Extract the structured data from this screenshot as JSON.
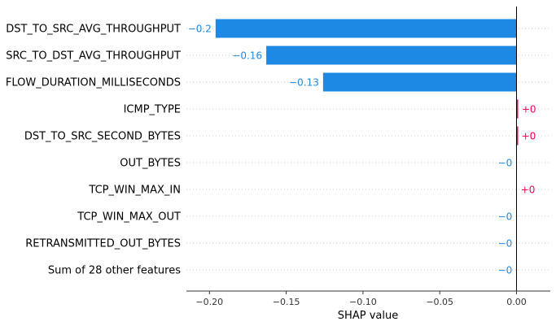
{
  "chart_data": {
    "type": "bar",
    "orientation": "horizontal",
    "title": "",
    "xlabel": "SHAP value",
    "ylabel": "",
    "xlim": [
      -0.215,
      0.022
    ],
    "grid": "horizontal dotted",
    "colors": {
      "negative": "#1e88e5",
      "positive": "#ff0051"
    },
    "categories": [
      "DST_TO_SRC_AVG_THROUGHPUT",
      "SRC_TO_DST_AVG_THROUGHPUT",
      "FLOW_DURATION_MILLISECONDS",
      "ICMP_TYPE",
      "DST_TO_SRC_SECOND_BYTES",
      "OUT_BYTES",
      "TCP_WIN_MAX_IN",
      "TCP_WIN_MAX_OUT",
      "RETRANSMITTED_OUT_BYTES",
      "Sum of 28 other features"
    ],
    "values": [
      -0.196,
      -0.163,
      -0.126,
      0.0007,
      0.0006,
      -0.0001,
      0.0001,
      -0.0001,
      -0.0001,
      -0.0001
    ],
    "value_labels": [
      "−0.2",
      "−0.16",
      "−0.13",
      "+0",
      "+0",
      "−0",
      "+0",
      "−0",
      "−0",
      "−0"
    ],
    "xticks": [
      -0.2,
      -0.15,
      -0.1,
      -0.05,
      0.0
    ],
    "xtick_labels": [
      "−0.20",
      "−0.15",
      "−0.10",
      "−0.05",
      "0.00"
    ]
  }
}
